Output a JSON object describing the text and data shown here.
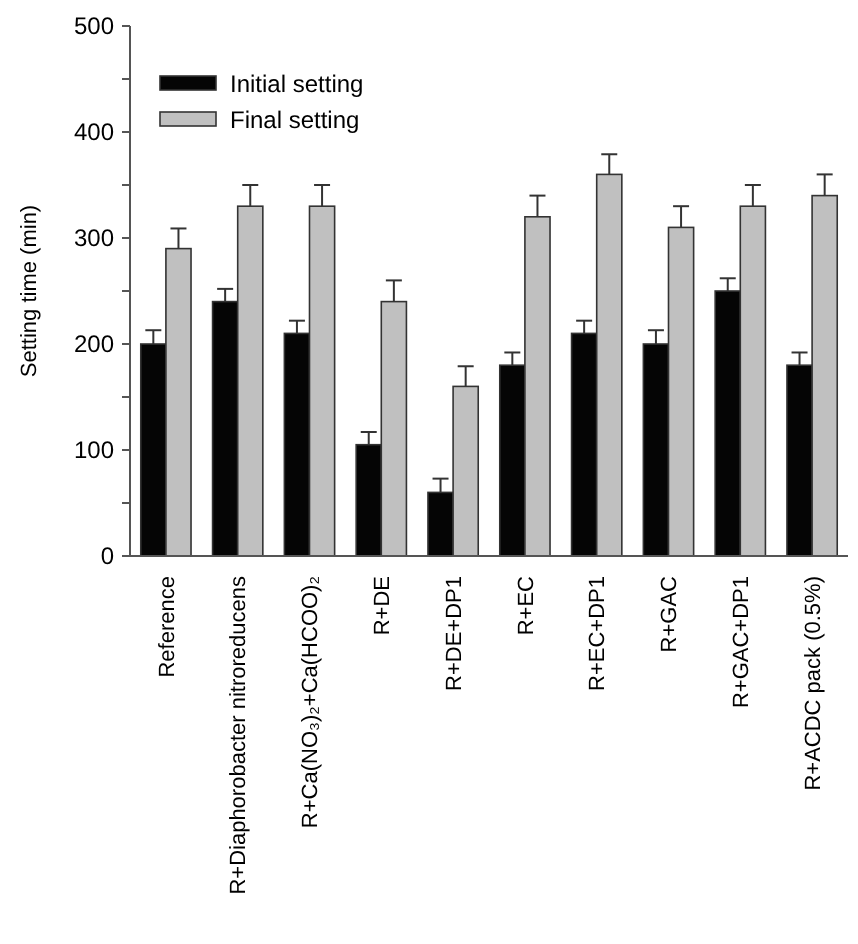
{
  "chart_data": {
    "type": "bar",
    "ylabel": "Setting time (min)",
    "categories": [
      "Reference",
      "R+Diaphorobacter nitroreducens",
      "R+Ca(NO₃)₂+Ca(HCOO)₂",
      "R+DE",
      "R+DE+DP1",
      "R+EC",
      "R+EC+DP1",
      "R+GAC",
      "R+GAC+DP1",
      "R+ACDC pack (0.5%)"
    ],
    "series": [
      {
        "name": "Initial setting",
        "color": "#050505",
        "values": [
          200,
          240,
          210,
          105,
          60,
          180,
          210,
          200,
          250,
          180
        ],
        "errors": [
          [
            200,
            213
          ],
          [
            240,
            252
          ],
          [
            210,
            222
          ],
          [
            105,
            117
          ],
          [
            60,
            73
          ],
          [
            180,
            192
          ],
          [
            210,
            222
          ],
          [
            200,
            213
          ],
          [
            250,
            262
          ],
          [
            180,
            192
          ]
        ]
      },
      {
        "name": "Final setting",
        "color": "#c0c0c0",
        "values": [
          290,
          330,
          330,
          240,
          160,
          320,
          360,
          310,
          330,
          340
        ],
        "errors": [
          [
            290,
            309
          ],
          [
            330,
            350
          ],
          [
            330,
            350
          ],
          [
            240,
            260
          ],
          [
            160,
            179
          ],
          [
            320,
            340
          ],
          [
            360,
            379
          ],
          [
            310,
            330
          ],
          [
            330,
            350
          ],
          [
            340,
            360
          ]
        ]
      }
    ],
    "ylim": [
      0,
      500
    ],
    "yticks": [
      0,
      {
        "value": 50,
        "label": null
      },
      100,
      {
        "value": 150,
        "label": null
      },
      200,
      {
        "value": 250,
        "label": null
      },
      300,
      {
        "value": 350,
        "label": null
      },
      400,
      {
        "value": 450,
        "label": null
      },
      500
    ],
    "grid": false,
    "legend": "top left"
  }
}
